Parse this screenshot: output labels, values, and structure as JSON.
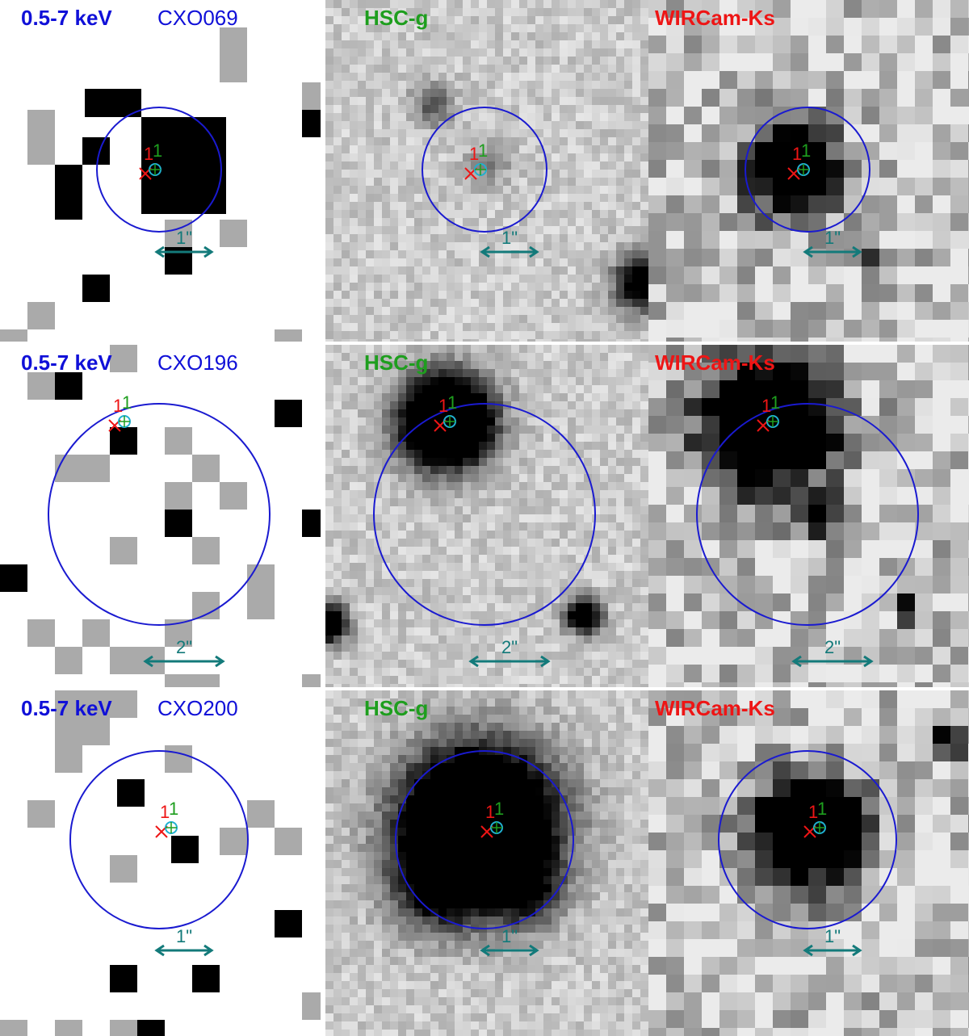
{
  "rows": [
    {
      "source": "CXO069",
      "panels": [
        {
          "band": "0.5-7 keV",
          "scale": "1\"",
          "marker_labels": [
            "1",
            "1"
          ]
        },
        {
          "band": "HSC-g",
          "scale": "1\"",
          "marker_labels": [
            "1",
            "1"
          ]
        },
        {
          "band": "WIRCam-Ks",
          "scale": "1\"",
          "marker_labels": [
            "1",
            "1"
          ]
        }
      ]
    },
    {
      "source": "CXO196",
      "panels": [
        {
          "band": "0.5-7 keV",
          "scale": "2\"",
          "marker_labels": [
            "1",
            "1"
          ]
        },
        {
          "band": "HSC-g",
          "scale": "2\"",
          "marker_labels": [
            "1",
            "1"
          ]
        },
        {
          "band": "WIRCam-Ks",
          "scale": "2\"",
          "marker_labels": [
            "1",
            "1"
          ]
        }
      ]
    },
    {
      "source": "CXO200",
      "panels": [
        {
          "band": "0.5-7 keV",
          "scale": "1\"",
          "marker_labels": [
            "1",
            "1"
          ]
        },
        {
          "band": "HSC-g",
          "scale": "1\"",
          "marker_labels": [
            "1",
            "1"
          ]
        },
        {
          "band": "WIRCam-Ks",
          "scale": "1\"",
          "marker_labels": [
            "1",
            "1"
          ]
        }
      ]
    }
  ]
}
